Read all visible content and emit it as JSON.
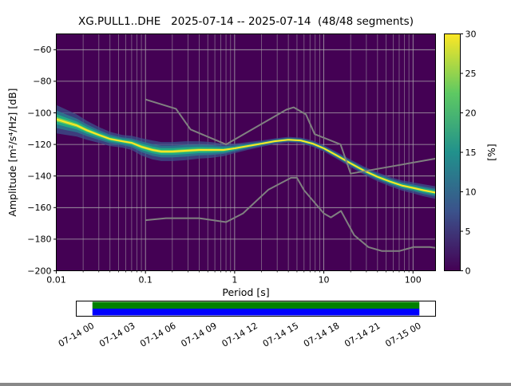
{
  "chart_data": {
    "type": "heatmap",
    "title": "XG.PULL1..DHE   2025-07-14 -- 2025-07-14  (48/48 segments)",
    "xlabel": "Period [s]",
    "ylabel": "Amplitude [m²/s⁴/Hz] [dB]",
    "xscale": "log",
    "xlim": [
      0.01,
      179
    ],
    "ylim": [
      -200,
      -50
    ],
    "x_ticks": [
      0.01,
      0.1,
      1,
      10,
      100
    ],
    "x_tick_labels": [
      "0.01",
      "0.1",
      "1",
      "10",
      "100"
    ],
    "y_ticks": [
      -60,
      -80,
      -100,
      -120,
      -140,
      -160,
      -180,
      -200
    ],
    "y_tick_labels": [
      "−60",
      "−80",
      "−100",
      "−120",
      "−140",
      "−160",
      "−180",
      "−200"
    ],
    "grid": true,
    "background_color": "#440154",
    "colorbar": {
      "label": "[%]",
      "min": 0,
      "max": 30,
      "ticks": [
        0,
        5,
        10,
        15,
        20,
        25,
        30
      ],
      "colormap": "viridis",
      "stops": [
        {
          "offset": 0.0,
          "color": "#440154"
        },
        {
          "offset": 0.25,
          "color": "#3b528b"
        },
        {
          "offset": 0.5,
          "color": "#21918c"
        },
        {
          "offset": 0.75,
          "color": "#5ec962"
        },
        {
          "offset": 1.0,
          "color": "#fde725"
        }
      ]
    },
    "psd_band": {
      "comment": "Probabilistic PSD mode curve (dB) with half-spread of the visible probability cloud",
      "periods": [
        0.01,
        0.013,
        0.017,
        0.022,
        0.03,
        0.04,
        0.055,
        0.07,
        0.09,
        0.12,
        0.15,
        0.2,
        0.28,
        0.4,
        0.55,
        0.75,
        1.0,
        1.4,
        2.0,
        2.8,
        4.0,
        5.5,
        7.5,
        10,
        14,
        20,
        28,
        40,
        55,
        75,
        100,
        130,
        179
      ],
      "center_db": [
        -104,
        -106,
        -108,
        -111,
        -114,
        -116.5,
        -118,
        -119,
        -121.5,
        -123.5,
        -124.5,
        -124.5,
        -124,
        -123.5,
        -123.5,
        -123.5,
        -122.5,
        -121,
        -119.5,
        -118,
        -117,
        -117.5,
        -119.5,
        -122.5,
        -127,
        -132,
        -136.5,
        -140.5,
        -143.5,
        -146,
        -147.5,
        -149,
        -150.5
      ],
      "spread_db": [
        9,
        8,
        7,
        6,
        5,
        4.5,
        4,
        4.5,
        5.5,
        6,
        6,
        6,
        6,
        5.5,
        5,
        4,
        3,
        2.5,
        2,
        1.8,
        1.8,
        1.8,
        2,
        2,
        2.2,
        2.4,
        2.6,
        2.8,
        3,
        3.2,
        3.5,
        3.8,
        4
      ],
      "layers": [
        {
          "f": 1.0,
          "color": "#3b528b",
          "opacity": 0.75
        },
        {
          "f": 0.62,
          "color": "#2a788e",
          "opacity": 0.9
        },
        {
          "f": 0.36,
          "color": "#22a884",
          "opacity": 1
        },
        {
          "f": 0.16,
          "color": "#7ad151",
          "opacity": 1
        }
      ],
      "center_color": "#fde725"
    },
    "noise_models": {
      "comment": "Peterson NHNM / NLNM reference curves",
      "color": "#808080",
      "high": {
        "periods": [
          0.1,
          0.22,
          0.32,
          0.8,
          3.8,
          4.6,
          6.3,
          7.9,
          15.4,
          20,
          179
        ],
        "db": [
          -91.5,
          -97.4,
          -110.5,
          -120.0,
          -98.0,
          -96.5,
          -101.0,
          -113.5,
          -120.0,
          -138.5,
          -129.0
        ]
      },
      "low": {
        "periods": [
          0.1,
          0.17,
          0.4,
          0.8,
          1.24,
          2.4,
          4.3,
          5.0,
          6.0,
          10.0,
          12.0,
          15.6,
          21.9,
          31.6,
          45.0,
          70.0,
          101.0,
          154.0,
          179
        ],
        "db": [
          -168.0,
          -166.7,
          -166.7,
          -169.2,
          -163.7,
          -148.6,
          -141.1,
          -141.1,
          -149.0,
          -163.7,
          -166.2,
          -162.1,
          -177.5,
          -185.0,
          -187.5,
          -187.5,
          -185.0,
          -185.0,
          -185.5
        ]
      }
    }
  },
  "timeline": {
    "labels": [
      "07-14 00",
      "07-14 03",
      "07-14 06",
      "07-14 09",
      "07-14 12",
      "07-14 15",
      "07-14 18",
      "07-14 21",
      "07-15 00"
    ],
    "bar_colors": {
      "top": "#008000",
      "bottom": "#0000ff"
    },
    "coverage_frac": [
      0.045,
      0.955
    ]
  }
}
